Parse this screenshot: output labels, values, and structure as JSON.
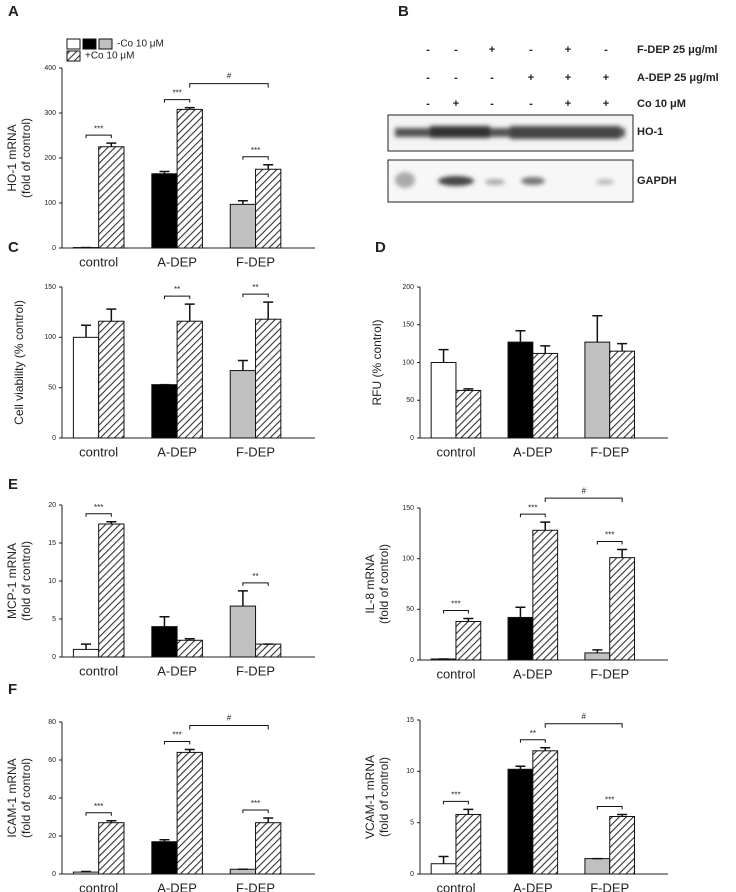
{
  "chart_data": [
    {
      "type": "bar",
      "panel": "A",
      "ylabel": [
        "HO-1 mRNA",
        "(fold of control)"
      ],
      "categories": [
        "control",
        "A-DEP",
        "F-DEP"
      ],
      "ylim": [
        0,
        400
      ],
      "yticks": [
        0,
        100,
        200,
        300,
        400
      ],
      "legend": "top-left",
      "series": [
        {
          "name": "-Co 10 μM",
          "colors": [
            "#ffffff",
            "#000000",
            "#c0c0c0"
          ],
          "values": [
            1,
            165,
            97
          ],
          "errors": [
            0,
            5,
            8
          ]
        },
        {
          "name": "+Co 10 μM",
          "color": "#ffffff",
          "hatch": true,
          "values": [
            225,
            308,
            175
          ],
          "errors": [
            8,
            4,
            10
          ]
        }
      ],
      "annotations": [
        {
          "label": "***",
          "category": "control"
        },
        {
          "label": "***",
          "category": "A-DEP"
        },
        {
          "label": "***",
          "category": "F-DEP"
        },
        {
          "label": "#",
          "from": "A-DEP",
          "to": "F-DEP"
        }
      ]
    },
    {
      "type": "bar",
      "panel": "C",
      "ylabel": [
        "Cell viability (% control)"
      ],
      "categories": [
        "control",
        "A-DEP",
        "F-DEP"
      ],
      "ylim": [
        0,
        150
      ],
      "yticks": [
        0,
        50,
        100,
        150
      ],
      "series": [
        {
          "colors": [
            "#ffffff",
            "#000000",
            "#c0c0c0"
          ],
          "values": [
            100,
            53,
            67
          ],
          "errors": [
            12,
            0,
            10
          ]
        },
        {
          "color": "#ffffff",
          "hatch": true,
          "values": [
            116,
            116,
            118
          ],
          "errors": [
            12,
            17,
            17
          ]
        }
      ],
      "annotations": [
        {
          "label": "**",
          "category": "A-DEP"
        },
        {
          "label": "**",
          "category": "F-DEP"
        }
      ]
    },
    {
      "type": "bar",
      "panel": "D",
      "ylabel": [
        "RFU (% control)"
      ],
      "categories": [
        "control",
        "A-DEP",
        "F-DEP"
      ],
      "ylim": [
        0,
        200
      ],
      "yticks": [
        0,
        50,
        100,
        150,
        200
      ],
      "series": [
        {
          "colors": [
            "#ffffff",
            "#000000",
            "#c0c0c0"
          ],
          "values": [
            100,
            127,
            127
          ],
          "errors": [
            17,
            15,
            35
          ]
        },
        {
          "color": "#ffffff",
          "hatch": true,
          "values": [
            63,
            112,
            115
          ],
          "errors": [
            2,
            10,
            10
          ]
        }
      ],
      "annotations": []
    },
    {
      "type": "bar",
      "panel": "E",
      "ylabel": [
        "MCP-1 mRNA",
        "(fold of control)"
      ],
      "categories": [
        "control",
        "A-DEP",
        "F-DEP"
      ],
      "ylim": [
        0,
        20
      ],
      "yticks": [
        0,
        5,
        10,
        15,
        20
      ],
      "series": [
        {
          "colors": [
            "#ffffff",
            "#000000",
            "#c0c0c0"
          ],
          "values": [
            1,
            4,
            6.7
          ],
          "errors": [
            0.7,
            1.3,
            2
          ]
        },
        {
          "color": "#ffffff",
          "hatch": true,
          "values": [
            17.5,
            2.2,
            1.7
          ],
          "errors": [
            0.3,
            0.2,
            0
          ]
        }
      ],
      "annotations": [
        {
          "label": "***",
          "category": "control"
        },
        {
          "label": "**",
          "category": "F-DEP"
        }
      ]
    },
    {
      "type": "bar",
      "ylabel": [
        "IL-8 mRNA",
        "(fold of control)"
      ],
      "categories": [
        "control",
        "A-DEP",
        "F-DEP"
      ],
      "ylim": [
        0,
        150
      ],
      "yticks": [
        0,
        50,
        100,
        150
      ],
      "series": [
        {
          "colors": [
            "#ffffff",
            "#000000",
            "#c0c0c0"
          ],
          "values": [
            1,
            42,
            7
          ],
          "errors": [
            0,
            10,
            3
          ]
        },
        {
          "color": "#ffffff",
          "hatch": true,
          "values": [
            38,
            128,
            101
          ],
          "errors": [
            3,
            8,
            8
          ]
        }
      ],
      "annotations": [
        {
          "label": "***",
          "category": "control"
        },
        {
          "label": "***",
          "category": "A-DEP"
        },
        {
          "label": "***",
          "category": "F-DEP"
        },
        {
          "label": "#",
          "from": "A-DEP",
          "to": "F-DEP"
        }
      ]
    },
    {
      "type": "bar",
      "panel": "F",
      "ylabel": [
        "ICAM-1 mRNA",
        "(fold of control)"
      ],
      "categories": [
        "control",
        "A-DEP",
        "F-DEP"
      ],
      "ylim": [
        0,
        80
      ],
      "yticks": [
        0,
        20,
        40,
        60,
        80
      ],
      "series": [
        {
          "colors": [
            "#ffffff",
            "#000000",
            "#c0c0c0"
          ],
          "values": [
            1,
            17,
            2.5
          ],
          "errors": [
            0.3,
            1,
            0
          ]
        },
        {
          "color": "#ffffff",
          "hatch": true,
          "values": [
            27,
            64,
            27
          ],
          "errors": [
            1,
            1.5,
            2.5
          ]
        }
      ],
      "annotations": [
        {
          "label": "***",
          "category": "control"
        },
        {
          "label": "***",
          "category": "A-DEP"
        },
        {
          "label": "***",
          "category": "F-DEP"
        },
        {
          "label": "#",
          "from": "A-DEP",
          "to": "F-DEP"
        }
      ]
    },
    {
      "type": "bar",
      "ylabel": [
        "VCAM-1 mRNA",
        "(fold of control)"
      ],
      "categories": [
        "control",
        "A-DEP",
        "F-DEP"
      ],
      "ylim": [
        0,
        15
      ],
      "yticks": [
        0,
        5,
        10,
        15
      ],
      "series": [
        {
          "colors": [
            "#ffffff",
            "#000000",
            "#c0c0c0"
          ],
          "values": [
            1,
            10.2,
            1.5
          ],
          "errors": [
            0.7,
            0.3,
            0
          ]
        },
        {
          "color": "#ffffff",
          "hatch": true,
          "values": [
            5.8,
            12,
            5.6
          ],
          "errors": [
            0.5,
            0.3,
            0.2
          ]
        }
      ],
      "annotations": [
        {
          "label": "***",
          "category": "control"
        },
        {
          "label": "**",
          "category": "A-DEP"
        },
        {
          "label": "***",
          "category": "F-DEP"
        },
        {
          "label": "#",
          "from": "A-DEP",
          "to": "F-DEP"
        }
      ]
    }
  ],
  "blot": {
    "panel": "B",
    "treatments": [
      {
        "label": "F-DEP 25 μg/ml",
        "signs": [
          "-",
          "-",
          "+",
          "-",
          "+",
          "-"
        ]
      },
      {
        "label": "A-DEP 25 μg/ml",
        "signs": [
          "-",
          "-",
          "-",
          "+",
          "+",
          "+"
        ]
      },
      {
        "label": "Co 10 μM",
        "signs": [
          "-",
          "+",
          "-",
          "-",
          "+",
          "+"
        ]
      }
    ],
    "bands": [
      "HO-1",
      "GAPDH"
    ]
  }
}
